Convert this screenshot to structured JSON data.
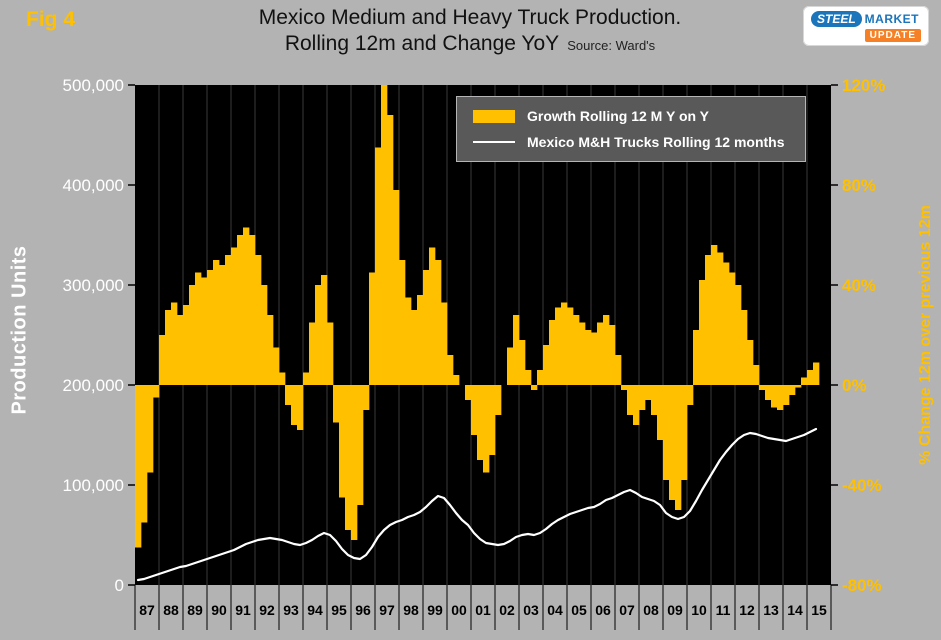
{
  "fig_label": "Fig 4",
  "title": {
    "line1": "Mexico Medium and Heavy Truck Production.",
    "line2": "Rolling 12m and Change YoY",
    "source": "Source: Ward's"
  },
  "logo": {
    "steel": "STEEL",
    "market": "MARKET",
    "update": "UPDATE"
  },
  "axes": {
    "left_label": "Production Units",
    "right_label": "% Change 12m over previous 12m"
  },
  "legend": [
    {
      "swatch": "bar",
      "label": "Growth Rolling 12 M Y on Y"
    },
    {
      "swatch": "line",
      "label": "Mexico M&H Trucks Rolling 12 months"
    }
  ],
  "colors": {
    "background": "#b3b3b3",
    "plot_bg": "#000000",
    "accent_gold": "#FFC000",
    "line_white": "#FFFFFF",
    "gridline": "#3a3a3a",
    "tick": "#000000"
  },
  "chart_data": {
    "type": "combo",
    "title": "Mexico Medium and Heavy Truck Production. Rolling 12m and Change YoY",
    "source": "Ward's",
    "x_start": 1987,
    "x_step": 0.25,
    "x_years": 29,
    "x_tick_labels": [
      "87",
      "88",
      "89",
      "90",
      "91",
      "92",
      "93",
      "94",
      "95",
      "96",
      "97",
      "98",
      "99",
      "00",
      "01",
      "02",
      "03",
      "04",
      "05",
      "06",
      "07",
      "08",
      "09",
      "10",
      "11",
      "12",
      "13",
      "14",
      "15"
    ],
    "left_axis": {
      "label": "Production Units",
      "range": [
        0,
        500000
      ],
      "ticks": [
        0,
        100000,
        200000,
        300000,
        400000,
        500000
      ]
    },
    "right_axis": {
      "label": "% Change 12m over previous 12m",
      "range": [
        -80,
        120
      ],
      "ticks": [
        -80,
        -40,
        0,
        40,
        80,
        120
      ],
      "unit": "%"
    },
    "grid": "vertical-yearly",
    "legend_position": "top-right-inside",
    "series": [
      {
        "name": "Growth Rolling 12 M Y on Y",
        "type": "bar",
        "axis": "right",
        "color": "#FFC000",
        "unit": "percent",
        "values": [
          -65,
          -55,
          -35,
          -5,
          20,
          30,
          33,
          28,
          32,
          40,
          45,
          43,
          46,
          50,
          48,
          52,
          55,
          60,
          63,
          60,
          52,
          40,
          28,
          15,
          5,
          -8,
          -16,
          -18,
          5,
          25,
          40,
          44,
          25,
          -15,
          -45,
          -58,
          -62,
          -48,
          -10,
          45,
          95,
          120,
          108,
          78,
          50,
          35,
          30,
          36,
          46,
          55,
          50,
          33,
          12,
          4,
          0,
          -6,
          -20,
          -30,
          -35,
          -28,
          -12,
          0,
          15,
          28,
          18,
          6,
          -2,
          6,
          16,
          26,
          31,
          33,
          31,
          28,
          25,
          22,
          21,
          25,
          28,
          24,
          12,
          -2,
          -12,
          -16,
          -10,
          -6,
          -12,
          -22,
          -38,
          -46,
          -50,
          -38,
          -8,
          22,
          42,
          52,
          56,
          53,
          49,
          45,
          40,
          30,
          18,
          8,
          -2,
          -6,
          -9,
          -10,
          -8,
          -4,
          -1,
          3,
          6,
          9
        ]
      },
      {
        "name": "Mexico M&H Trucks Rolling 12 months",
        "type": "line",
        "axis": "left",
        "color": "#FFFFFF",
        "unit": "thousand units",
        "values": [
          5,
          6,
          8,
          10,
          12,
          14,
          16,
          18,
          19,
          21,
          23,
          25,
          27,
          29,
          31,
          33,
          35,
          38,
          41,
          43,
          45,
          46,
          47,
          46,
          45,
          43,
          41,
          40,
          42,
          45,
          49,
          52,
          50,
          44,
          36,
          30,
          27,
          26,
          30,
          38,
          48,
          55,
          60,
          63,
          65,
          68,
          70,
          73,
          78,
          84,
          89,
          87,
          80,
          72,
          65,
          60,
          52,
          46,
          42,
          41,
          40,
          41,
          44,
          48,
          50,
          51,
          50,
          52,
          56,
          61,
          65,
          68,
          71,
          73,
          75,
          77,
          78,
          81,
          85,
          87,
          90,
          93,
          95,
          92,
          88,
          86,
          84,
          80,
          72,
          68,
          66,
          68,
          74,
          84,
          95,
          105,
          115,
          125,
          133,
          140,
          146,
          150,
          152,
          151,
          149,
          147,
          146,
          145,
          144,
          146,
          148,
          150,
          153,
          156
        ]
      }
    ]
  }
}
